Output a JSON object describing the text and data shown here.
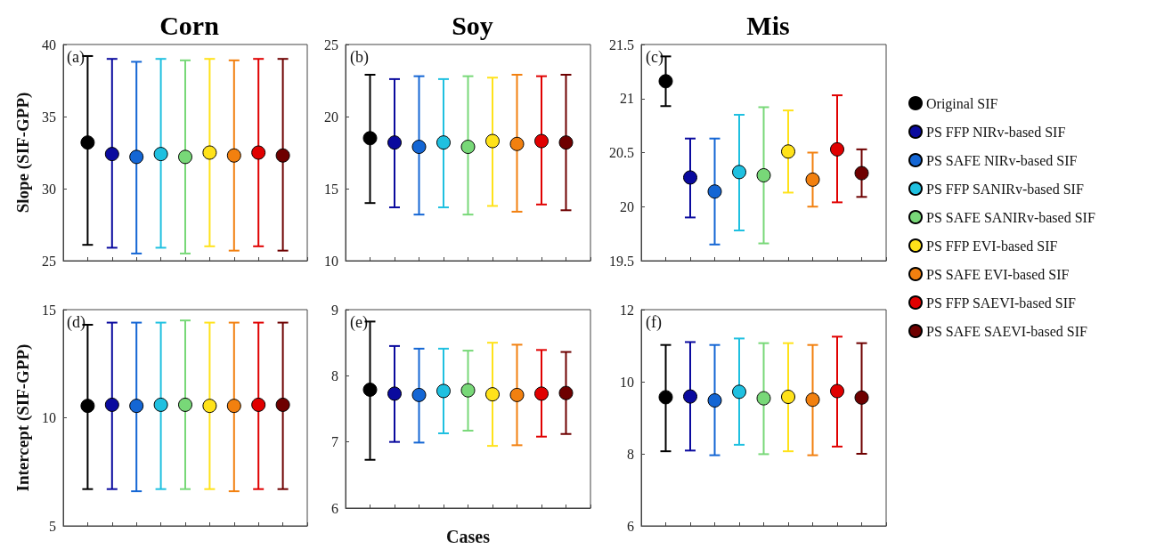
{
  "chart_data": [
    {
      "type": "scatter",
      "title": "Corn",
      "ylabel": "Slope (SIF-GPP)",
      "annotations": [
        "(a)"
      ],
      "categories": [
        null,
        null,
        null,
        null,
        null,
        null,
        null,
        null,
        null
      ],
      "ylim": [
        25,
        40
      ],
      "yticks": [
        25,
        30,
        35,
        40
      ],
      "tick_labels": "y",
      "grid": false,
      "marker": "circle",
      "series": [
        {
          "color": "#000000",
          "values": [
            33.2,
            null,
            null,
            null,
            null,
            null,
            null,
            null,
            null
          ],
          "errors": [
            [
              26.1,
              39.2
            ],
            null,
            null,
            null,
            null,
            null,
            null,
            null,
            null
          ]
        },
        {
          "color": "#0a0a9e",
          "values": [
            null,
            32.4,
            null,
            null,
            null,
            null,
            null,
            null,
            null
          ],
          "errors": [
            null,
            [
              25.9,
              39.0
            ],
            null,
            null,
            null,
            null,
            null,
            null,
            null
          ]
        },
        {
          "color": "#1466d4",
          "values": [
            null,
            null,
            32.2,
            null,
            null,
            null,
            null,
            null,
            null
          ],
          "errors": [
            null,
            null,
            [
              25.5,
              38.8
            ],
            null,
            null,
            null,
            null,
            null,
            null
          ]
        },
        {
          "color": "#1fc0e0",
          "values": [
            null,
            null,
            null,
            32.4,
            null,
            null,
            null,
            null,
            null
          ],
          "errors": [
            null,
            null,
            null,
            [
              25.9,
              39.0
            ],
            null,
            null,
            null,
            null,
            null
          ]
        },
        {
          "color": "#78d878",
          "values": [
            null,
            null,
            null,
            null,
            32.2,
            null,
            null,
            null,
            null
          ],
          "errors": [
            null,
            null,
            null,
            null,
            [
              25.5,
              38.9
            ],
            null,
            null,
            null,
            null
          ]
        },
        {
          "color": "#ffe21a",
          "values": [
            null,
            null,
            null,
            null,
            null,
            32.5,
            null,
            null,
            null
          ],
          "errors": [
            null,
            null,
            null,
            null,
            null,
            [
              26.0,
              39.0
            ],
            null,
            null,
            null
          ]
        },
        {
          "color": "#f2800f",
          "values": [
            null,
            null,
            null,
            null,
            null,
            null,
            32.3,
            null,
            null
          ],
          "errors": [
            null,
            null,
            null,
            null,
            null,
            null,
            [
              25.7,
              38.9
            ],
            null,
            null
          ]
        },
        {
          "color": "#e00000",
          "values": [
            null,
            null,
            null,
            null,
            null,
            null,
            null,
            32.5,
            null
          ],
          "errors": [
            null,
            null,
            null,
            null,
            null,
            null,
            null,
            [
              26.0,
              39.0
            ],
            null
          ]
        },
        {
          "color": "#6e0000",
          "values": [
            null,
            null,
            null,
            null,
            null,
            null,
            null,
            null,
            32.3
          ],
          "errors": [
            null,
            null,
            null,
            null,
            null,
            null,
            null,
            null,
            [
              25.7,
              39.0
            ]
          ]
        }
      ]
    },
    {
      "type": "scatter",
      "title": "Soy",
      "annotations": [
        "(b)"
      ],
      "categories": [
        null,
        null,
        null,
        null,
        null,
        null,
        null,
        null,
        null
      ],
      "ylim": [
        10,
        25
      ],
      "yticks": [
        10,
        15,
        20,
        25
      ],
      "tick_labels": "y",
      "grid": false,
      "marker": "circle",
      "series": [
        {
          "color": "#000000",
          "values": [
            18.5,
            null,
            null,
            null,
            null,
            null,
            null,
            null,
            null
          ],
          "errors": [
            [
              14.0,
              22.9
            ],
            null,
            null,
            null,
            null,
            null,
            null,
            null,
            null
          ]
        },
        {
          "color": "#0a0a9e",
          "values": [
            null,
            18.2,
            null,
            null,
            null,
            null,
            null,
            null,
            null
          ],
          "errors": [
            null,
            [
              13.7,
              22.6
            ],
            null,
            null,
            null,
            null,
            null,
            null,
            null
          ]
        },
        {
          "color": "#1466d4",
          "values": [
            null,
            null,
            17.9,
            null,
            null,
            null,
            null,
            null,
            null
          ],
          "errors": [
            null,
            null,
            [
              13.2,
              22.8
            ],
            null,
            null,
            null,
            null,
            null,
            null
          ]
        },
        {
          "color": "#1fc0e0",
          "values": [
            null,
            null,
            null,
            18.2,
            null,
            null,
            null,
            null,
            null
          ],
          "errors": [
            null,
            null,
            null,
            [
              13.7,
              22.6
            ],
            null,
            null,
            null,
            null,
            null
          ]
        },
        {
          "color": "#78d878",
          "values": [
            null,
            null,
            null,
            null,
            17.9,
            null,
            null,
            null,
            null
          ],
          "errors": [
            null,
            null,
            null,
            null,
            [
              13.2,
              22.8
            ],
            null,
            null,
            null,
            null
          ]
        },
        {
          "color": "#ffe21a",
          "values": [
            null,
            null,
            null,
            null,
            null,
            18.3,
            null,
            null,
            null
          ],
          "errors": [
            null,
            null,
            null,
            null,
            null,
            [
              13.8,
              22.7
            ],
            null,
            null,
            null
          ]
        },
        {
          "color": "#f2800f",
          "values": [
            null,
            null,
            null,
            null,
            null,
            null,
            18.1,
            null,
            null
          ],
          "errors": [
            null,
            null,
            null,
            null,
            null,
            null,
            [
              13.4,
              22.9
            ],
            null,
            null
          ]
        },
        {
          "color": "#e00000",
          "values": [
            null,
            null,
            null,
            null,
            null,
            null,
            null,
            18.3,
            null
          ],
          "errors": [
            null,
            null,
            null,
            null,
            null,
            null,
            null,
            [
              13.9,
              22.8
            ],
            null
          ]
        },
        {
          "color": "#6e0000",
          "values": [
            null,
            null,
            null,
            null,
            null,
            null,
            null,
            null,
            18.2
          ],
          "errors": [
            null,
            null,
            null,
            null,
            null,
            null,
            null,
            null,
            [
              13.5,
              22.9
            ]
          ]
        }
      ]
    },
    {
      "type": "scatter",
      "title": "Mis",
      "annotations": [
        "(c)"
      ],
      "categories": [
        null,
        null,
        null,
        null,
        null,
        null,
        null,
        null,
        null
      ],
      "ylim": [
        19.5,
        21.5
      ],
      "yticks": [
        19.5,
        20,
        20.5,
        21,
        21.5
      ],
      "tick_labels": "y",
      "grid": false,
      "marker": "circle",
      "legend": "right",
      "series": [
        {
          "name": "Original SIF",
          "color": "#000000",
          "values": [
            21.16,
            null,
            null,
            null,
            null,
            null,
            null,
            null,
            null
          ],
          "errors": [
            [
              20.93,
              21.39
            ],
            null,
            null,
            null,
            null,
            null,
            null,
            null,
            null
          ]
        },
        {
          "name": "PS FFP NIRv-based SIF",
          "color": "#0a0a9e",
          "values": [
            null,
            20.27,
            null,
            null,
            null,
            null,
            null,
            null,
            null
          ],
          "errors": [
            null,
            [
              19.9,
              20.63
            ],
            null,
            null,
            null,
            null,
            null,
            null,
            null
          ]
        },
        {
          "name": "PS SAFE NIRv-based SIF",
          "color": "#1466d4",
          "values": [
            null,
            null,
            20.14,
            null,
            null,
            null,
            null,
            null,
            null
          ],
          "errors": [
            null,
            null,
            [
              19.65,
              20.63
            ],
            null,
            null,
            null,
            null,
            null,
            null
          ]
        },
        {
          "name": "PS FFP SANIRv-based SIF",
          "color": "#1fc0e0",
          "values": [
            null,
            null,
            null,
            20.32,
            null,
            null,
            null,
            null,
            null
          ],
          "errors": [
            null,
            null,
            null,
            [
              19.78,
              20.85
            ],
            null,
            null,
            null,
            null,
            null
          ]
        },
        {
          "name": "PS SAFE SANIRv-based SIF",
          "color": "#78d878",
          "values": [
            null,
            null,
            null,
            null,
            20.29,
            null,
            null,
            null,
            null
          ],
          "errors": [
            null,
            null,
            null,
            null,
            [
              19.66,
              20.92
            ],
            null,
            null,
            null,
            null
          ]
        },
        {
          "name": "PS FFP EVI-based SIF",
          "color": "#ffe21a",
          "values": [
            null,
            null,
            null,
            null,
            null,
            20.51,
            null,
            null,
            null
          ],
          "errors": [
            null,
            null,
            null,
            null,
            null,
            [
              20.13,
              20.89
            ],
            null,
            null,
            null
          ]
        },
        {
          "name": "PS SAFE EVI-based SIF",
          "color": "#f2800f",
          "values": [
            null,
            null,
            null,
            null,
            null,
            null,
            20.25,
            null,
            null
          ],
          "errors": [
            null,
            null,
            null,
            null,
            null,
            null,
            [
              20.0,
              20.5
            ],
            null,
            null
          ]
        },
        {
          "name": "PS FFP SAEVI-based SIF",
          "color": "#e00000",
          "values": [
            null,
            null,
            null,
            null,
            null,
            null,
            null,
            20.53,
            null
          ],
          "errors": [
            null,
            null,
            null,
            null,
            null,
            null,
            null,
            [
              20.04,
              21.03
            ],
            null
          ]
        },
        {
          "name": "PS SAFE SAEVI-based SIF",
          "color": "#6e0000",
          "values": [
            null,
            null,
            null,
            null,
            null,
            null,
            null,
            null,
            20.31
          ],
          "errors": [
            null,
            null,
            null,
            null,
            null,
            null,
            null,
            null,
            [
              20.09,
              20.53
            ]
          ]
        }
      ]
    },
    {
      "type": "scatter",
      "ylabel": "Intercept (SIF-GPP)",
      "annotations": [
        "(d)"
      ],
      "categories": [
        null,
        null,
        null,
        null,
        null,
        null,
        null,
        null,
        null
      ],
      "ylim": [
        5,
        15
      ],
      "yticks": [
        5,
        10,
        15
      ],
      "tick_labels": "y",
      "grid": false,
      "marker": "circle",
      "series": [
        {
          "color": "#000000",
          "values": [
            10.55,
            null,
            null,
            null,
            null,
            null,
            null,
            null,
            null
          ],
          "errors": [
            [
              6.7,
              14.3
            ],
            null,
            null,
            null,
            null,
            null,
            null,
            null,
            null
          ]
        },
        {
          "color": "#0a0a9e",
          "values": [
            null,
            10.6,
            null,
            null,
            null,
            null,
            null,
            null,
            null
          ],
          "errors": [
            null,
            [
              6.7,
              14.4
            ],
            null,
            null,
            null,
            null,
            null,
            null,
            null
          ]
        },
        {
          "color": "#1466d4",
          "values": [
            null,
            null,
            10.55,
            null,
            null,
            null,
            null,
            null,
            null
          ],
          "errors": [
            null,
            null,
            [
              6.6,
              14.4
            ],
            null,
            null,
            null,
            null,
            null,
            null
          ]
        },
        {
          "color": "#1fc0e0",
          "values": [
            null,
            null,
            null,
            10.6,
            null,
            null,
            null,
            null,
            null
          ],
          "errors": [
            null,
            null,
            null,
            [
              6.7,
              14.4
            ],
            null,
            null,
            null,
            null,
            null
          ]
        },
        {
          "color": "#78d878",
          "values": [
            null,
            null,
            null,
            null,
            10.6,
            null,
            null,
            null,
            null
          ],
          "errors": [
            null,
            null,
            null,
            null,
            [
              6.7,
              14.5
            ],
            null,
            null,
            null,
            null
          ]
        },
        {
          "color": "#ffe21a",
          "values": [
            null,
            null,
            null,
            null,
            null,
            10.55,
            null,
            null,
            null
          ],
          "errors": [
            null,
            null,
            null,
            null,
            null,
            [
              6.7,
              14.4
            ],
            null,
            null,
            null
          ]
        },
        {
          "color": "#f2800f",
          "values": [
            null,
            null,
            null,
            null,
            null,
            null,
            10.55,
            null,
            null
          ],
          "errors": [
            null,
            null,
            null,
            null,
            null,
            null,
            [
              6.6,
              14.4
            ],
            null,
            null
          ]
        },
        {
          "color": "#e00000",
          "values": [
            null,
            null,
            null,
            null,
            null,
            null,
            null,
            10.6,
            null
          ],
          "errors": [
            null,
            null,
            null,
            null,
            null,
            null,
            null,
            [
              6.7,
              14.4
            ],
            null
          ]
        },
        {
          "color": "#6e0000",
          "values": [
            null,
            null,
            null,
            null,
            null,
            null,
            null,
            null,
            10.6
          ],
          "errors": [
            null,
            null,
            null,
            null,
            null,
            null,
            null,
            null,
            [
              6.7,
              14.4
            ]
          ]
        }
      ]
    },
    {
      "type": "scatter",
      "xlabel": "Cases",
      "annotations": [
        "(e)"
      ],
      "categories": [
        null,
        null,
        null,
        null,
        null,
        null,
        null,
        null,
        null
      ],
      "ylim": [
        6,
        9
      ],
      "yticks": [
        6,
        7,
        8,
        9
      ],
      "tick_labels": "y",
      "grid": false,
      "marker": "circle",
      "series": [
        {
          "color": "#000000",
          "values": [
            7.79,
            null,
            null,
            null,
            null,
            null,
            null,
            null,
            null
          ],
          "errors": [
            [
              6.73,
              8.82
            ],
            null,
            null,
            null,
            null,
            null,
            null,
            null,
            null
          ]
        },
        {
          "color": "#0a0a9e",
          "values": [
            null,
            7.73,
            null,
            null,
            null,
            null,
            null,
            null,
            null
          ],
          "errors": [
            null,
            [
              7.0,
              8.45
            ],
            null,
            null,
            null,
            null,
            null,
            null,
            null
          ]
        },
        {
          "color": "#1466d4",
          "values": [
            null,
            null,
            7.71,
            null,
            null,
            null,
            null,
            null,
            null
          ],
          "errors": [
            null,
            null,
            [
              6.99,
              8.41
            ],
            null,
            null,
            null,
            null,
            null,
            null
          ]
        },
        {
          "color": "#1fc0e0",
          "values": [
            null,
            null,
            null,
            7.77,
            null,
            null,
            null,
            null,
            null
          ],
          "errors": [
            null,
            null,
            null,
            [
              7.13,
              8.41
            ],
            null,
            null,
            null,
            null,
            null
          ]
        },
        {
          "color": "#78d878",
          "values": [
            null,
            null,
            null,
            null,
            7.78,
            null,
            null,
            null,
            null
          ],
          "errors": [
            null,
            null,
            null,
            null,
            [
              7.17,
              8.38
            ],
            null,
            null,
            null,
            null
          ]
        },
        {
          "color": "#ffe21a",
          "values": [
            null,
            null,
            null,
            null,
            null,
            7.72,
            null,
            null,
            null
          ],
          "errors": [
            null,
            null,
            null,
            null,
            null,
            [
              6.94,
              8.5
            ],
            null,
            null,
            null
          ]
        },
        {
          "color": "#f2800f",
          "values": [
            null,
            null,
            null,
            null,
            null,
            null,
            7.71,
            null,
            null
          ],
          "errors": [
            null,
            null,
            null,
            null,
            null,
            null,
            [
              6.95,
              8.47
            ],
            null,
            null
          ]
        },
        {
          "color": "#e00000",
          "values": [
            null,
            null,
            null,
            null,
            null,
            null,
            null,
            7.73,
            null
          ],
          "errors": [
            null,
            null,
            null,
            null,
            null,
            null,
            null,
            [
              7.08,
              8.39
            ],
            null
          ]
        },
        {
          "color": "#6e0000",
          "values": [
            null,
            null,
            null,
            null,
            null,
            null,
            null,
            null,
            7.74
          ],
          "errors": [
            null,
            null,
            null,
            null,
            null,
            null,
            null,
            null,
            [
              7.12,
              8.36
            ]
          ]
        }
      ]
    },
    {
      "type": "scatter",
      "annotations": [
        "(f)"
      ],
      "categories": [
        null,
        null,
        null,
        null,
        null,
        null,
        null,
        null,
        null
      ],
      "ylim": [
        6,
        12
      ],
      "yticks": [
        6,
        8,
        10,
        12
      ],
      "tick_labels": "y",
      "grid": false,
      "marker": "circle",
      "series": [
        {
          "color": "#000000",
          "values": [
            9.57,
            null,
            null,
            null,
            null,
            null,
            null,
            null,
            null
          ],
          "errors": [
            [
              8.07,
              11.02
            ],
            null,
            null,
            null,
            null,
            null,
            null,
            null,
            null
          ]
        },
        {
          "color": "#0a0a9e",
          "values": [
            null,
            9.59,
            null,
            null,
            null,
            null,
            null,
            null,
            null
          ],
          "errors": [
            null,
            [
              8.09,
              11.1
            ],
            null,
            null,
            null,
            null,
            null,
            null,
            null
          ]
        },
        {
          "color": "#1466d4",
          "values": [
            null,
            null,
            9.48,
            null,
            null,
            null,
            null,
            null,
            null
          ],
          "errors": [
            null,
            null,
            [
              7.96,
              11.02
            ],
            null,
            null,
            null,
            null,
            null,
            null
          ]
        },
        {
          "color": "#1fc0e0",
          "values": [
            null,
            null,
            null,
            9.72,
            null,
            null,
            null,
            null,
            null
          ],
          "errors": [
            null,
            null,
            null,
            [
              8.25,
              11.2
            ],
            null,
            null,
            null,
            null,
            null
          ]
        },
        {
          "color": "#78d878",
          "values": [
            null,
            null,
            null,
            null,
            9.54,
            null,
            null,
            null,
            null
          ],
          "errors": [
            null,
            null,
            null,
            null,
            [
              7.99,
              11.07
            ],
            null,
            null,
            null,
            null
          ]
        },
        {
          "color": "#ffe21a",
          "values": [
            null,
            null,
            null,
            null,
            null,
            9.58,
            null,
            null,
            null
          ],
          "errors": [
            null,
            null,
            null,
            null,
            null,
            [
              8.07,
              11.07
            ],
            null,
            null,
            null
          ]
        },
        {
          "color": "#f2800f",
          "values": [
            null,
            null,
            null,
            null,
            null,
            null,
            9.5,
            null,
            null
          ],
          "errors": [
            null,
            null,
            null,
            null,
            null,
            null,
            [
              7.96,
              11.02
            ],
            null,
            null
          ]
        },
        {
          "color": "#e00000",
          "values": [
            null,
            null,
            null,
            null,
            null,
            null,
            null,
            9.74,
            null
          ],
          "errors": [
            null,
            null,
            null,
            null,
            null,
            null,
            null,
            [
              8.2,
              11.25
            ],
            null
          ]
        },
        {
          "color": "#6e0000",
          "values": [
            null,
            null,
            null,
            null,
            null,
            null,
            null,
            null,
            9.56
          ],
          "errors": [
            null,
            null,
            null,
            null,
            null,
            null,
            null,
            null,
            [
              8.0,
              11.07
            ]
          ]
        }
      ]
    }
  ]
}
